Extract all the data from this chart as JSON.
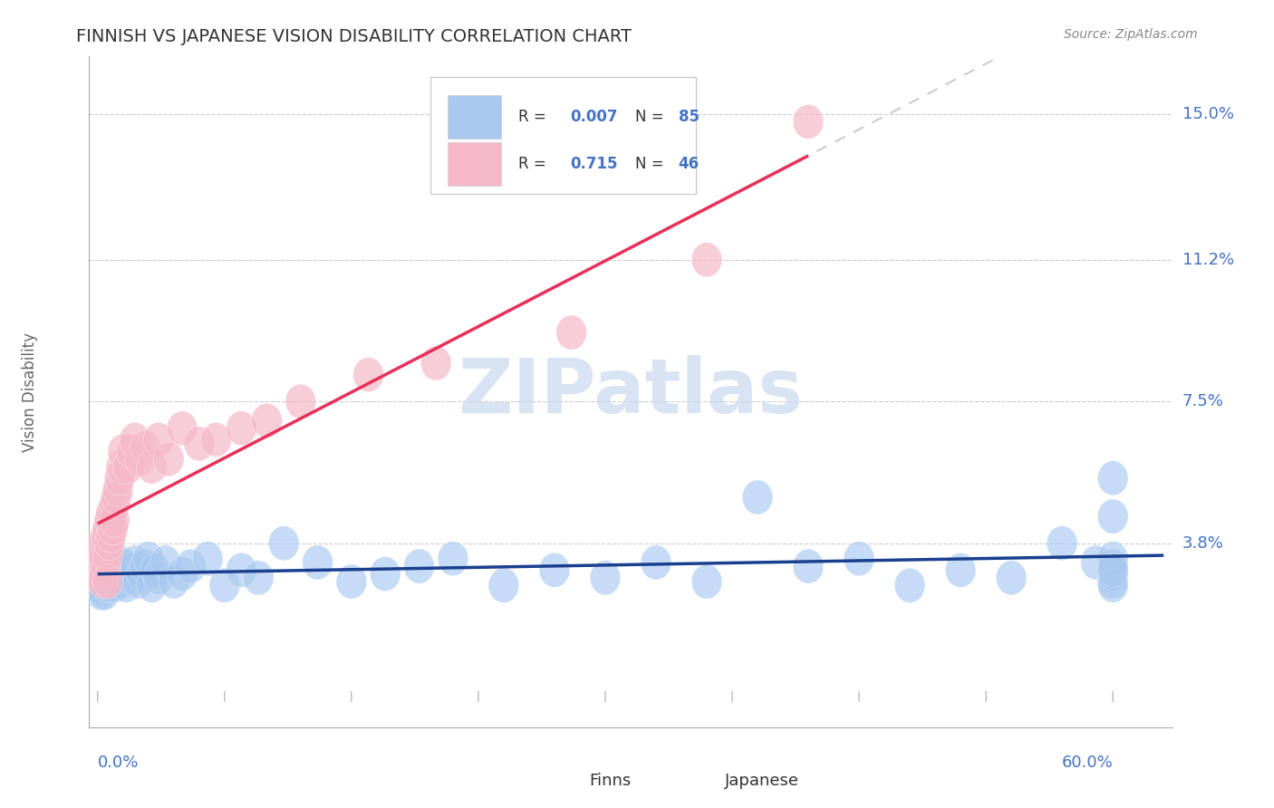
{
  "title": "FINNISH VS JAPANESE VISION DISABILITY CORRELATION CHART",
  "source": "Source: ZipAtlas.com",
  "ylabel": "Vision Disability",
  "y_ticks": [
    0.038,
    0.075,
    0.112,
    0.15
  ],
  "y_tick_labels": [
    "3.8%",
    "7.5%",
    "11.2%",
    "15.0%"
  ],
  "finns_color": "#A8C8F0",
  "japanese_color": "#F5B8C8",
  "finns_line_color": "#1A3F8F",
  "japanese_line_color": "#E8305A",
  "blue_text": "#4472C4",
  "gray_text": "#888888",
  "dark_text": "#444444",
  "watermark_color": "#C8D8EE",
  "legend_text_color": "#4472C4",
  "finns_x": [
    0.001,
    0.001,
    0.002,
    0.002,
    0.002,
    0.002,
    0.003,
    0.003,
    0.003,
    0.003,
    0.003,
    0.003,
    0.004,
    0.004,
    0.004,
    0.004,
    0.004,
    0.005,
    0.005,
    0.005,
    0.005,
    0.006,
    0.006,
    0.006,
    0.007,
    0.007,
    0.007,
    0.008,
    0.008,
    0.009,
    0.01,
    0.01,
    0.011,
    0.012,
    0.013,
    0.014,
    0.015,
    0.016,
    0.017,
    0.018,
    0.019,
    0.02,
    0.022,
    0.024,
    0.026,
    0.028,
    0.03,
    0.032,
    0.034,
    0.036,
    0.04,
    0.045,
    0.05,
    0.055,
    0.065,
    0.075,
    0.085,
    0.095,
    0.11,
    0.13,
    0.15,
    0.17,
    0.19,
    0.21,
    0.24,
    0.27,
    0.3,
    0.33,
    0.36,
    0.39,
    0.42,
    0.45,
    0.48,
    0.51,
    0.54,
    0.57,
    0.59,
    0.6,
    0.6,
    0.6,
    0.6,
    0.6,
    0.6,
    0.6,
    0.6
  ],
  "finns_y": [
    0.03,
    0.028,
    0.032,
    0.025,
    0.035,
    0.027,
    0.03,
    0.033,
    0.026,
    0.031,
    0.029,
    0.034,
    0.028,
    0.032,
    0.03,
    0.025,
    0.034,
    0.029,
    0.033,
    0.027,
    0.031,
    0.03,
    0.028,
    0.032,
    0.027,
    0.031,
    0.029,
    0.033,
    0.028,
    0.03,
    0.032,
    0.027,
    0.031,
    0.029,
    0.033,
    0.028,
    0.03,
    0.032,
    0.027,
    0.031,
    0.03,
    0.029,
    0.033,
    0.028,
    0.03,
    0.032,
    0.034,
    0.027,
    0.031,
    0.029,
    0.033,
    0.028,
    0.03,
    0.032,
    0.034,
    0.027,
    0.031,
    0.029,
    0.038,
    0.033,
    0.028,
    0.03,
    0.032,
    0.034,
    0.027,
    0.031,
    0.029,
    0.033,
    0.028,
    0.05,
    0.032,
    0.034,
    0.027,
    0.031,
    0.029,
    0.038,
    0.033,
    0.045,
    0.028,
    0.03,
    0.055,
    0.032,
    0.034,
    0.027,
    0.031
  ],
  "japanese_x": [
    0.001,
    0.001,
    0.002,
    0.002,
    0.003,
    0.003,
    0.003,
    0.004,
    0.004,
    0.005,
    0.005,
    0.005,
    0.006,
    0.006,
    0.006,
    0.007,
    0.007,
    0.008,
    0.008,
    0.009,
    0.01,
    0.01,
    0.011,
    0.012,
    0.013,
    0.014,
    0.015,
    0.018,
    0.02,
    0.022,
    0.025,
    0.028,
    0.032,
    0.036,
    0.042,
    0.05,
    0.06,
    0.07,
    0.085,
    0.1,
    0.12,
    0.16,
    0.2,
    0.28,
    0.36,
    0.42
  ],
  "japanese_y": [
    0.03,
    0.033,
    0.032,
    0.036,
    0.028,
    0.035,
    0.038,
    0.034,
    0.03,
    0.038,
    0.032,
    0.04,
    0.035,
    0.042,
    0.028,
    0.038,
    0.044,
    0.04,
    0.046,
    0.042,
    0.048,
    0.044,
    0.05,
    0.052,
    0.055,
    0.058,
    0.062,
    0.058,
    0.062,
    0.065,
    0.06,
    0.063,
    0.058,
    0.065,
    0.06,
    0.068,
    0.064,
    0.065,
    0.068,
    0.07,
    0.075,
    0.082,
    0.085,
    0.093,
    0.112,
    0.148
  ]
}
